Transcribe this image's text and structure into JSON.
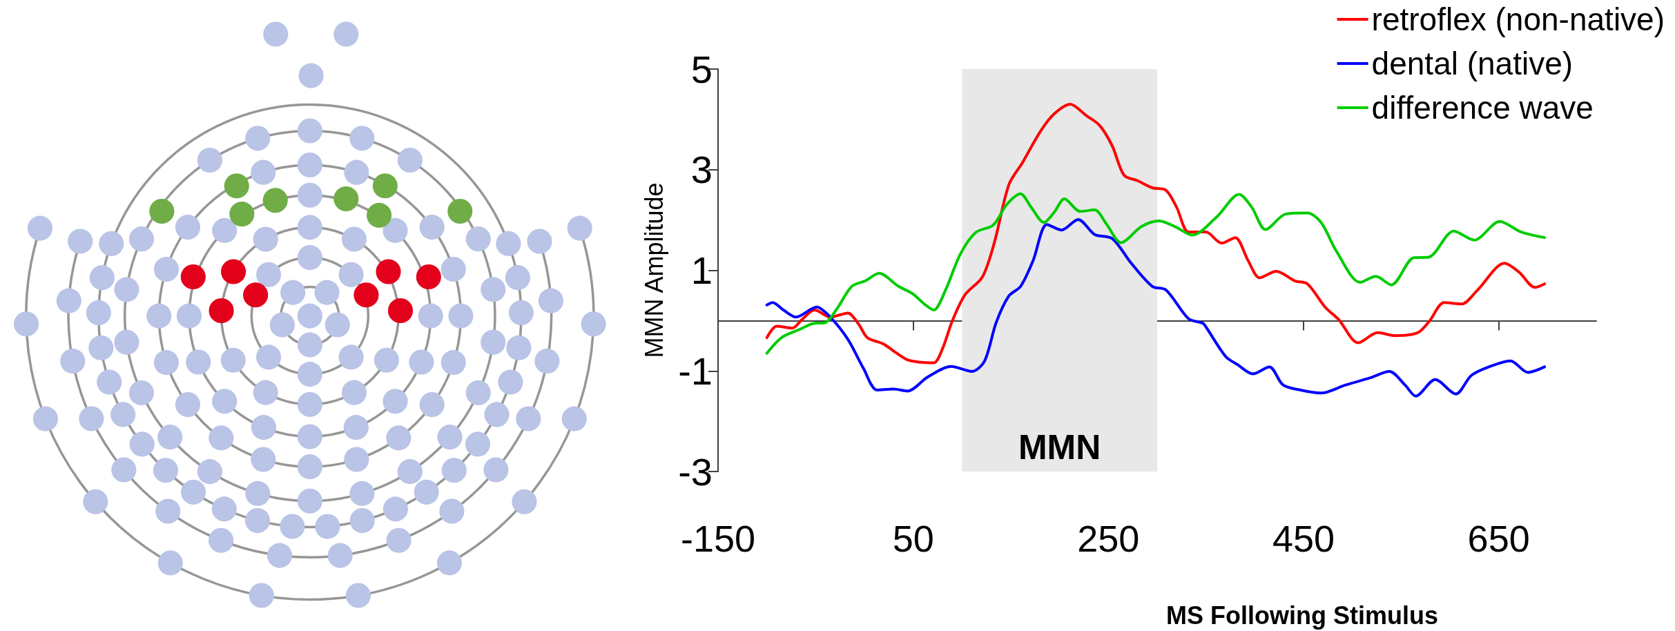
{
  "chart_data": {
    "type": "line",
    "xlabel": "MS Following Stimulus",
    "ylabel": "MMN Amplitude",
    "xlim": [
      -150,
      750
    ],
    "xticks": [
      -150,
      50,
      250,
      450,
      650
    ],
    "ylim": [
      -3,
      5
    ],
    "yticks": [
      -3,
      -1,
      1,
      3,
      5
    ],
    "legend": "top right",
    "grid": false,
    "bands": [
      {
        "axis": "x",
        "from": 100,
        "to": 300,
        "label": "MMN",
        "color": "#e8e8e8"
      }
    ],
    "series": [
      {
        "name": "retroflex (non-native)",
        "color": "#ff0000",
        "x": [
          -100,
          -90,
          -74,
          -64,
          -51,
          -35,
          -17,
          -6,
          3,
          19,
          31,
          44,
          58,
          71,
          80,
          90,
          103,
          121,
          133,
          148,
          162,
          180,
          194,
          211,
          227,
          241,
          254,
          266,
          280,
          295,
          309,
          320,
          332,
          345,
          350,
          366,
          380,
          393,
          405,
          422,
          441,
          454,
          472,
          486,
          506,
          526,
          544,
          567,
          579,
          594,
          612,
          628,
          656,
          671,
          687,
          697
        ],
        "values": [
          -0.34,
          -0.11,
          -0.15,
          0.02,
          0.21,
          0.07,
          0.15,
          -0.07,
          -0.34,
          -0.46,
          -0.62,
          -0.78,
          -0.83,
          -0.84,
          -0.56,
          -0.01,
          0.51,
          0.87,
          1.54,
          2.7,
          3.14,
          3.75,
          4.1,
          4.3,
          4.08,
          3.88,
          3.47,
          2.89,
          2.78,
          2.64,
          2.59,
          2.25,
          1.76,
          1.76,
          1.76,
          1.54,
          1.65,
          1.2,
          0.85,
          0.98,
          0.79,
          0.73,
          0.27,
          0.02,
          -0.44,
          -0.24,
          -0.3,
          -0.24,
          -0.01,
          0.36,
          0.33,
          0.6,
          1.14,
          0.96,
          0.66,
          0.73
        ]
      },
      {
        "name": "dental (native)",
        "color": "#0000ff",
        "x": [
          -100,
          -94,
          -83,
          -70,
          -49,
          -35,
          -17,
          -1,
          13,
          30,
          44,
          65,
          89,
          110,
          123,
          135,
          148,
          160,
          173,
          187,
          202,
          219,
          236,
          254,
          273,
          295,
          309,
          332,
          345,
          348,
          370,
          382,
          398,
          415,
          429,
          447,
          468,
          493,
          518,
          538,
          554,
          565,
          585,
          606,
          622,
          640,
          662,
          680,
          697
        ],
        "values": [
          0.31,
          0.36,
          0.21,
          0.07,
          0.27,
          0.07,
          -0.37,
          -0.95,
          -1.38,
          -1.36,
          -1.4,
          -1.12,
          -0.91,
          -1.01,
          -0.81,
          -0.04,
          0.49,
          0.68,
          1.2,
          1.91,
          1.8,
          2.01,
          1.71,
          1.63,
          1.15,
          0.68,
          0.61,
          0.04,
          -0.04,
          -0.07,
          -0.71,
          -0.87,
          -1.06,
          -0.92,
          -1.28,
          -1.38,
          -1.44,
          -1.28,
          -1.14,
          -1.01,
          -1.28,
          -1.5,
          -1.17,
          -1.46,
          -1.09,
          -0.92,
          -0.8,
          -1.03,
          -0.92
        ]
      },
      {
        "name": "difference wave",
        "color": "#00cc00",
        "x": [
          -100,
          -85,
          -67,
          -53,
          -40,
          -28,
          -13,
          1,
          15,
          35,
          49,
          62,
          71,
          83,
          98,
          114,
          132,
          146,
          160,
          171,
          184,
          194,
          205,
          221,
          236,
          248,
          263,
          284,
          302,
          318,
          336,
          361,
          384,
          397,
          411,
          432,
          454,
          468,
          484,
          508,
          524,
          540,
          563,
          578,
          604,
          625,
          651,
          673,
          697
        ],
        "values": [
          -0.65,
          -0.34,
          -0.18,
          -0.06,
          -0.04,
          0.24,
          0.68,
          0.79,
          0.94,
          0.68,
          0.54,
          0.32,
          0.21,
          0.6,
          1.31,
          1.75,
          1.9,
          2.31,
          2.52,
          2.25,
          1.95,
          2.14,
          2.42,
          2.17,
          2.2,
          1.92,
          1.55,
          1.87,
          1.98,
          1.87,
          1.7,
          2.06,
          2.51,
          2.25,
          1.81,
          2.12,
          2.14,
          1.95,
          1.37,
          0.76,
          0.88,
          0.71,
          1.25,
          1.26,
          1.78,
          1.6,
          1.97,
          1.76,
          1.65
        ]
      }
    ]
  }
}
